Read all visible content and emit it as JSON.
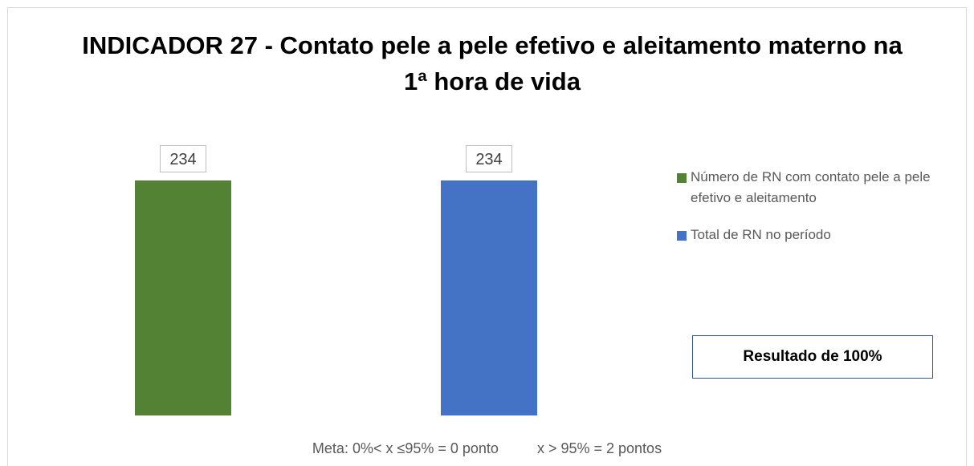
{
  "chart_data": {
    "type": "bar",
    "title": "INDICADOR 27 - Contato pele a pele efetivo e aleitamento materno na 1ª hora de vida",
    "categories": [
      null
    ],
    "series": [
      {
        "name": "Número de RN com contato pele a pele efetivo e aleitamento",
        "color": "#548235",
        "values": [
          234
        ]
      },
      {
        "name": "Total de RN no período",
        "color": "#4472c4",
        "values": [
          234
        ]
      }
    ],
    "annotations": [
      "Resultado de 100%",
      "Meta: 0%< x ≤95% = 0 ponto",
      "x > 95% = 2 pontos"
    ]
  }
}
